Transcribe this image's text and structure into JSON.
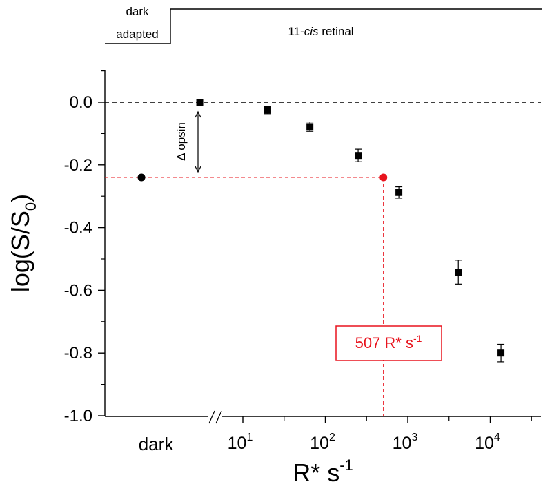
{
  "chart_data": {
    "type": "scatter",
    "xlabel_base": "R* s",
    "xlabel_exp": "-1",
    "ylabel_main": "log(S/S",
    "ylabel_sub": "0",
    "ylabel_close": ")",
    "ylim": [
      -1.0,
      0.1
    ],
    "xlim_log10": [
      0.5,
      4.75
    ],
    "x_scale": "log",
    "y_ticks": [
      0.0,
      -0.2,
      -0.4,
      -0.6,
      -0.8,
      -1.0
    ],
    "y_tick_labels": [
      "0.0",
      "-0.2",
      "-0.4",
      "-0.6",
      "-0.8",
      "-1.0"
    ],
    "x_major_ticks_log10": [
      1,
      2,
      3,
      4
    ],
    "x_tick_base": "10",
    "x_tick_exps": [
      "1",
      "2",
      "3",
      "4"
    ],
    "dark_label": "dark",
    "dark_point": {
      "y": -0.24
    },
    "series": [
      {
        "marker": "square",
        "x": [
          3,
          20,
          65,
          250,
          780,
          4100,
          13500
        ],
        "y": [
          0.0,
          -0.025,
          -0.078,
          -0.17,
          -0.288,
          -0.542,
          -0.8
        ],
        "err": [
          0.0,
          0.012,
          0.015,
          0.02,
          0.018,
          0.038,
          0.028
        ]
      }
    ],
    "red_point": {
      "x": 507,
      "y": -0.24,
      "color": "#e8141e"
    },
    "baseline_y": 0.0,
    "annotations": {
      "opsin_label": "Δ opsin",
      "red_box_base": "507 R* s",
      "red_box_exp": "-1"
    },
    "stimulus_trace": {
      "label_line1": "dark",
      "label_line2": "adapted",
      "label_right_prefix": "11-",
      "label_right_italic": "cis",
      "label_right_suffix": " retinal"
    }
  }
}
